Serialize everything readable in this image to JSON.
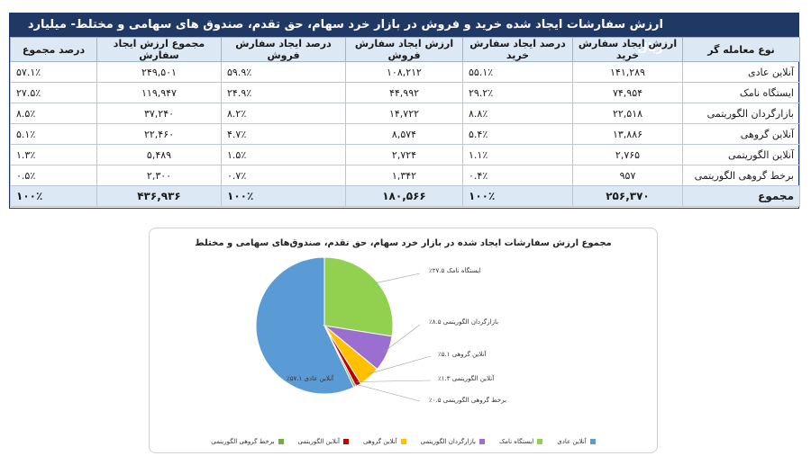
{
  "table": {
    "title": "ارزش سفارشات ایجاد شده خرید و فروش در بازار خرد سهام، حق تقدم، صندوق های سهامی و مختلط- میلیارد ریال",
    "headers": [
      "نوع معامله گر",
      "ارزش ایجاد سفارش خرید",
      "درصد ایجاد سفارش خرید",
      "ارزش ایجاد سفارش فروش",
      "درصد ایجاد سفارش فروش",
      "مجموع ارزش ایجاد سفارش",
      "درصد مجموع"
    ],
    "rows": [
      [
        "آنلاین عادی",
        "۱۴۱,۲۸۹",
        "۵۵.۱٪",
        "۱۰۸,۲۱۲",
        "۵۹.۹٪",
        "۲۴۹,۵۰۱",
        "۵۷.۱٪"
      ],
      [
        "ایستگاه نامک",
        "۷۴,۹۵۴",
        "۲۹.۲٪",
        "۴۴,۹۹۲",
        "۲۴.۹٪",
        "۱۱۹,۹۴۷",
        "۲۷.۵٪"
      ],
      [
        "بازارگردان الگوریتمی",
        "۲۲,۵۱۸",
        "۸.۸٪",
        "۱۴,۷۲۲",
        "۸.۲٪",
        "۳۷,۲۴۰",
        "۸.۵٪"
      ],
      [
        "آنلاین گروهی",
        "۱۳,۸۸۶",
        "۵.۴٪",
        "۸,۵۷۴",
        "۴.۷٪",
        "۲۲,۴۶۰",
        "۵.۱٪"
      ],
      [
        "آنلاین الگوریتمی",
        "۲,۷۶۵",
        "۱.۱٪",
        "۲,۷۲۴",
        "۱.۵٪",
        "۵,۴۸۹",
        "۱.۳٪"
      ],
      [
        "برخط گروهی الگوریتمی",
        "۹۵۷",
        "۰.۴٪",
        "۱,۳۴۲",
        "۰.۷٪",
        "۲,۳۰۰",
        "۰.۵٪"
      ]
    ],
    "total": [
      "مجموع",
      "۲۵۶,۳۷۰",
      "۱۰۰٪",
      "۱۸۰,۵۶۶",
      "۱۰۰٪",
      "۴۳۶,۹۳۶",
      "۱۰۰٪"
    ]
  },
  "chart_data": {
    "type": "pie",
    "title": "مجموع ارزش سفارشات ایجاد شده در بازار خرد سهام، حق تقدم، صندوق‌های سهامی و مختلط",
    "slices": [
      {
        "name": "آنلاین عادی",
        "value": 57.1,
        "label": "آنلاین عادی ۵۷.۱٪",
        "color": "#5b9bd5"
      },
      {
        "name": "ایستگاه نامک",
        "value": 27.5,
        "label": "ایستگاه نامک ۲۷.۵٪",
        "color": "#92d050"
      },
      {
        "name": "بازارگردان الگوریتمی",
        "value": 8.5,
        "label": "بازارگردان الگوریتمی ۸.۵٪",
        "color": "#9b6fd0"
      },
      {
        "name": "آنلاین گروهی",
        "value": 5.1,
        "label": "آنلاین گروهی ۵.۱٪",
        "color": "#ffc000"
      },
      {
        "name": "آنلاین الگوریتمی",
        "value": 1.3,
        "label": "آنلاین الگوریتمی ۱.۳٪",
        "color": "#c00000"
      },
      {
        "name": "برخط گروهی الگوریتمی",
        "value": 0.5,
        "label": "برخط گروهی الگوریتمی ۰.۵٪",
        "color": "#70ad47"
      }
    ],
    "legend_position": "bottom"
  }
}
